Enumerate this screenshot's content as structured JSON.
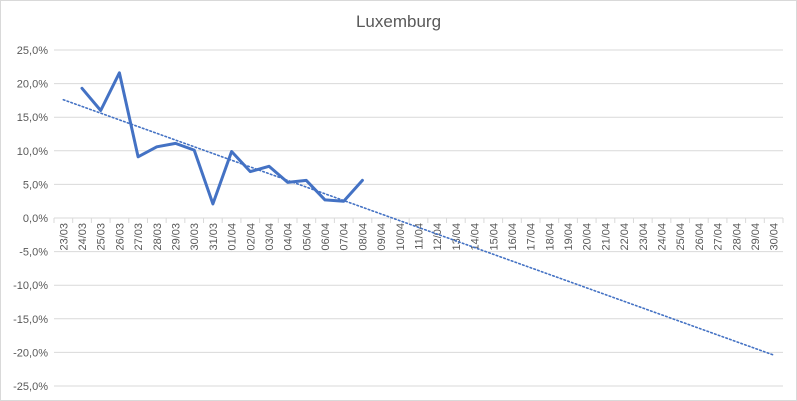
{
  "chart_data": {
    "type": "line",
    "title": "Luxemburg",
    "xlabel": "",
    "ylabel": "",
    "categories": [
      "23/03",
      "24/03",
      "25/03",
      "26/03",
      "27/03",
      "28/03",
      "29/03",
      "30/03",
      "31/03",
      "01/04",
      "02/04",
      "03/04",
      "04/04",
      "05/04",
      "06/04",
      "07/04",
      "08/04",
      "09/04",
      "10/04",
      "11/04",
      "12/04",
      "13/04",
      "14/04",
      "15/04",
      "16/04",
      "17/04",
      "18/04",
      "19/04",
      "20/04",
      "21/04",
      "22/04",
      "23/04",
      "24/04",
      "25/04",
      "26/04",
      "27/04",
      "28/04",
      "29/04",
      "30/04"
    ],
    "y_ticks": [
      "25,0%",
      "20,0%",
      "15,0%",
      "10,0%",
      "5,0%",
      "0,0%",
      "-5,0%",
      "-10,0%",
      "-15,0%",
      "-20,0%",
      "-25,0%"
    ],
    "ylim": [
      -25,
      25
    ],
    "grid": true,
    "series": [
      {
        "color": "#4472c4",
        "style": "solid",
        "values": [
          null,
          19.3,
          16.0,
          21.6,
          9.1,
          10.6,
          11.1,
          10.1,
          2.1,
          9.9,
          6.9,
          7.7,
          5.3,
          5.6,
          2.7,
          2.5,
          5.6,
          null,
          null,
          null,
          null,
          null,
          null,
          null,
          null,
          null,
          null,
          null,
          null,
          null,
          null,
          null,
          null,
          null,
          null,
          null,
          null,
          null,
          null
        ]
      },
      {
        "color": "#4472c4",
        "style": "dotted",
        "trendline": true,
        "start": {
          "x": "23/03",
          "y": 17.6
        },
        "end": {
          "x": "30/04",
          "y": -20.4
        }
      }
    ]
  }
}
